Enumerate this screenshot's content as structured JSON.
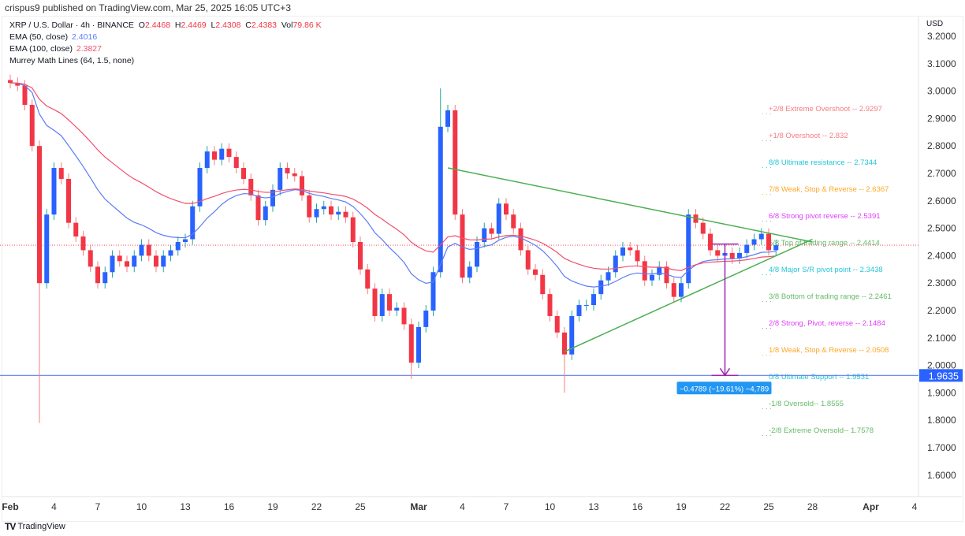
{
  "published": "crispus9 published on TradingView.com, Mar 25, 2025 16:05 UTC+3",
  "legend": {
    "symbol": "XRP / U.S. Dollar · 4h · BINANCE",
    "o_label": "O",
    "o": "2.4468",
    "h_label": "H",
    "h": "2.4469",
    "l_label": "L",
    "l": "2.4308",
    "c_label": "C",
    "c": "2.4383",
    "vol_label": "Vol",
    "vol": "79.86 K",
    "ema50": "EMA (50, close)",
    "ema50_value": "2.4016",
    "ema100": "EMA (100, close)",
    "ema100_value": "2.3827",
    "murrey": "Murrey Math Lines (64, 1.5, none)"
  },
  "footer": {
    "logo": "TradingView"
  },
  "chart_data": {
    "type": "candlestick",
    "currency": "USD",
    "ylim": [
      1.55,
      3.25
    ],
    "y_ticks": [
      "3.2000",
      "3.1000",
      "3.0000",
      "2.9000",
      "2.8000",
      "2.7000",
      "2.6000",
      "2.5000",
      "2.4000",
      "2.3000",
      "2.2000",
      "2.1000",
      "2.0000",
      "1.9000",
      "1.8000",
      "1.7000",
      "1.6000"
    ],
    "x_ticks": [
      {
        "label": "Feb",
        "day": "Feb 1",
        "bold": true
      },
      {
        "label": "4",
        "day": "Feb 4"
      },
      {
        "label": "7",
        "day": "Feb 7"
      },
      {
        "label": "10",
        "day": "Feb 10"
      },
      {
        "label": "13",
        "day": "Feb 13"
      },
      {
        "label": "16",
        "day": "Feb 16"
      },
      {
        "label": "19",
        "day": "Feb 19"
      },
      {
        "label": "22",
        "day": "Feb 22"
      },
      {
        "label": "25",
        "day": "Feb 25"
      },
      {
        "label": "Mar",
        "day": "Mar 1",
        "bold": true
      },
      {
        "label": "4",
        "day": "Mar 4"
      },
      {
        "label": "7",
        "day": "Mar 7"
      },
      {
        "label": "10",
        "day": "Mar 10"
      },
      {
        "label": "13",
        "day": "Mar 13"
      },
      {
        "label": "16",
        "day": "Mar 16"
      },
      {
        "label": "19",
        "day": "Mar 19"
      },
      {
        "label": "22",
        "day": "Mar 22"
      },
      {
        "label": "25",
        "day": "Mar 25"
      },
      {
        "label": "28",
        "day": "Mar 28"
      },
      {
        "label": "Apr",
        "day": "Apr 1",
        "bold": true
      },
      {
        "label": "4",
        "day": "Apr 4"
      }
    ],
    "closes": [
      [
        "Feb 1 00:00",
        3.03
      ],
      [
        "Feb 1 12:00",
        3.02
      ],
      [
        "Feb 2 00:00",
        2.95
      ],
      [
        "Feb 2 12:00",
        2.8
      ],
      [
        "Feb 3 00:00",
        2.3
      ],
      [
        "Feb 3 12:00",
        2.55
      ],
      [
        "Feb 4 00:00",
        2.72
      ],
      [
        "Feb 4 12:00",
        2.68
      ],
      [
        "Feb 5 00:00",
        2.52
      ],
      [
        "Feb 5 12:00",
        2.47
      ],
      [
        "Feb 6 00:00",
        2.42
      ],
      [
        "Feb 6 12:00",
        2.36
      ],
      [
        "Feb 7 00:00",
        2.3
      ],
      [
        "Feb 7 12:00",
        2.34
      ],
      [
        "Feb 8 00:00",
        2.4
      ],
      [
        "Feb 8 12:00",
        2.38
      ],
      [
        "Feb 9 00:00",
        2.36
      ],
      [
        "Feb 9 12:00",
        2.4
      ],
      [
        "Feb 10 00:00",
        2.44
      ],
      [
        "Feb 10 12:00",
        2.4
      ],
      [
        "Feb 11 00:00",
        2.36
      ],
      [
        "Feb 11 12:00",
        2.4
      ],
      [
        "Feb 12 00:00",
        2.42
      ],
      [
        "Feb 12 12:00",
        2.45
      ],
      [
        "Feb 13 00:00",
        2.46
      ],
      [
        "Feb 13 12:00",
        2.58
      ],
      [
        "Feb 14 00:00",
        2.72
      ],
      [
        "Feb 14 12:00",
        2.78
      ],
      [
        "Feb 15 00:00",
        2.75
      ],
      [
        "Feb 15 12:00",
        2.79
      ],
      [
        "Feb 16 00:00",
        2.76
      ],
      [
        "Feb 16 12:00",
        2.72
      ],
      [
        "Feb 17 00:00",
        2.68
      ],
      [
        "Feb 17 12:00",
        2.62
      ],
      [
        "Feb 18 00:00",
        2.53
      ],
      [
        "Feb 18 12:00",
        2.58
      ],
      [
        "Feb 19 00:00",
        2.64
      ],
      [
        "Feb 19 12:00",
        2.72
      ],
      [
        "Feb 20 00:00",
        2.7
      ],
      [
        "Feb 20 12:00",
        2.69
      ],
      [
        "Feb 21 00:00",
        2.62
      ],
      [
        "Feb 21 12:00",
        2.54
      ],
      [
        "Feb 22 00:00",
        2.57
      ],
      [
        "Feb 22 12:00",
        2.58
      ],
      [
        "Feb 23 00:00",
        2.55
      ],
      [
        "Feb 23 12:00",
        2.56
      ],
      [
        "Feb 24 00:00",
        2.54
      ],
      [
        "Feb 24 12:00",
        2.45
      ],
      [
        "Feb 25 00:00",
        2.35
      ],
      [
        "Feb 25 12:00",
        2.28
      ],
      [
        "Feb 26 00:00",
        2.18
      ],
      [
        "Feb 26 12:00",
        2.26
      ],
      [
        "Feb 27 00:00",
        2.2
      ],
      [
        "Feb 27 12:00",
        2.21
      ],
      [
        "Feb 28 00:00",
        2.15
      ],
      [
        "Feb 28 12:00",
        2.01
      ],
      [
        "Mar 1 00:00",
        2.14
      ],
      [
        "Mar 1 12:00",
        2.2
      ],
      [
        "Mar 2 00:00",
        2.34
      ],
      [
        "Mar 2 12:00",
        2.87
      ],
      [
        "Mar 3 00:00",
        2.93
      ],
      [
        "Mar 3 12:00",
        2.55
      ],
      [
        "Mar 4 00:00",
        2.32
      ],
      [
        "Mar 4 12:00",
        2.36
      ],
      [
        "Mar 5 00:00",
        2.45
      ],
      [
        "Mar 5 12:00",
        2.5
      ],
      [
        "Mar 6 00:00",
        2.48
      ],
      [
        "Mar 6 12:00",
        2.59
      ],
      [
        "Mar 7 00:00",
        2.55
      ],
      [
        "Mar 7 12:00",
        2.5
      ],
      [
        "Mar 8 00:00",
        2.42
      ],
      [
        "Mar 8 12:00",
        2.35
      ],
      [
        "Mar 9 00:00",
        2.33
      ],
      [
        "Mar 9 12:00",
        2.26
      ],
      [
        "Mar 10 00:00",
        2.18
      ],
      [
        "Mar 10 12:00",
        2.12
      ],
      [
        "Mar 11 00:00",
        2.04
      ],
      [
        "Mar 11 12:00",
        2.18
      ],
      [
        "Mar 12 00:00",
        2.22
      ],
      [
        "Mar 12 12:00",
        2.22
      ],
      [
        "Mar 13 00:00",
        2.26
      ],
      [
        "Mar 13 12:00",
        2.31
      ],
      [
        "Mar 14 00:00",
        2.34
      ],
      [
        "Mar 14 12:00",
        2.4
      ],
      [
        "Mar 15 00:00",
        2.43
      ],
      [
        "Mar 15 12:00",
        2.42
      ],
      [
        "Mar 16 00:00",
        2.38
      ],
      [
        "Mar 16 12:00",
        2.31
      ],
      [
        "Mar 17 00:00",
        2.33
      ],
      [
        "Mar 17 12:00",
        2.36
      ],
      [
        "Mar 18 00:00",
        2.3
      ],
      [
        "Mar 18 12:00",
        2.25
      ],
      [
        "Mar 19 00:00",
        2.3
      ],
      [
        "Mar 19 12:00",
        2.55
      ],
      [
        "Mar 20 00:00",
        2.52
      ],
      [
        "Mar 20 12:00",
        2.48
      ],
      [
        "Mar 21 00:00",
        2.42
      ],
      [
        "Mar 21 12:00",
        2.4
      ],
      [
        "Mar 22 00:00",
        2.41
      ],
      [
        "Mar 22 12:00",
        2.39
      ],
      [
        "Mar 23 00:00",
        2.41
      ],
      [
        "Mar 23 12:00",
        2.44
      ],
      [
        "Mar 24 00:00",
        2.46
      ],
      [
        "Mar 24 12:00",
        2.48
      ],
      [
        "Mar 25 00:00",
        2.42
      ],
      [
        "Mar 25 12:00",
        2.4383
      ]
    ],
    "wick_extremes": [
      [
        "Feb 3 00:00",
        1.79
      ],
      [
        "Mar 2 12:00",
        3.01
      ],
      [
        "Mar 11 00:00",
        1.9
      ],
      [
        "Feb 28 12:00",
        1.95
      ]
    ],
    "ema": [
      {
        "name": "EMA (50, close)",
        "period": 50,
        "color": "#5b7cf5"
      },
      {
        "name": "EMA (100, close)",
        "period": 100,
        "color": "#f0506e"
      }
    ],
    "colors": {
      "up": "#2962ff",
      "down": "#f23645",
      "trend": "#4caf50",
      "support": "#5b7cf5",
      "measure": "#9c27b0"
    },
    "last_price": 2.4383,
    "support_line": {
      "value": 1.9635,
      "label": "1.9635"
    },
    "trendlines": [
      {
        "from": [
          "Mar 3",
          2.72
        ],
        "to": [
          "Mar 28",
          2.45
        ]
      },
      {
        "from": [
          "Mar 11",
          2.05
        ],
        "to": [
          "Mar 28",
          2.46
        ]
      }
    ],
    "measure": {
      "day": "Mar 22",
      "from": 2.4424,
      "to": 1.9635,
      "label": "−0.4789 (−19.61%) −4,789"
    },
    "murrey_levels": [
      {
        "label": "+2/8 Extreme Overshoot --  2.9297",
        "value": 2.9297,
        "color": "#f77c80"
      },
      {
        "label": "+1/8 Overshoot --  2.832",
        "value": 2.832,
        "color": "#f77c80"
      },
      {
        "label": "8/8 Ultimate resistance --  2.7344",
        "value": 2.7344,
        "color": "#26c6da"
      },
      {
        "label": "7/8 Weak, Stop & Reverse --  2.6367",
        "value": 2.6367,
        "color": "#ffa726"
      },
      {
        "label": "6/8 Strong pivot reverse --  2.5391",
        "value": 2.5391,
        "color": "#e040fb"
      },
      {
        "label": "5/8 Top of trading range --  2.4414",
        "value": 2.4414,
        "color": "#66bb6a"
      },
      {
        "label": "4/8 Major S/R pivot point --  2.3438",
        "value": 2.3438,
        "color": "#26c6da"
      },
      {
        "label": "3/8 Bottom of trading range --  2.2461",
        "value": 2.2461,
        "color": "#66bb6a"
      },
      {
        "label": "2/8 Strong, Pivot, reverse --  2.1484",
        "value": 2.1484,
        "color": "#e040fb"
      },
      {
        "label": "1/8 Weak, Stop & Reverse --  2.0508",
        "value": 2.0508,
        "color": "#ffa726"
      },
      {
        "label": "0/8 Ultimate Support --  1.9531",
        "value": 1.9531,
        "color": "#26c6da"
      },
      {
        "label": "-1/8 Oversold--  1.8555",
        "value": 1.8555,
        "color": "#66bb6a"
      },
      {
        "label": "-2/8 Extreme Oversold--  1.7578",
        "value": 1.7578,
        "color": "#66bb6a"
      }
    ]
  }
}
